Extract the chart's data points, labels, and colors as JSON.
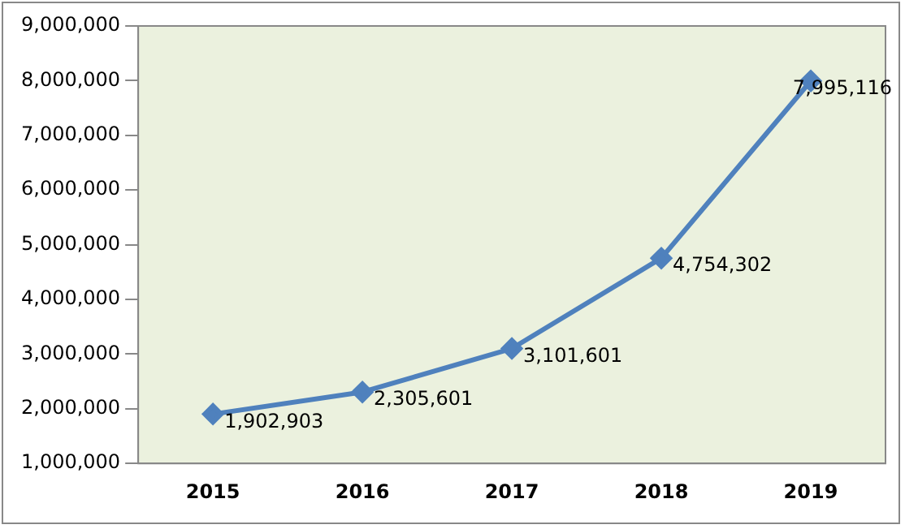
{
  "chart_data": {
    "type": "line",
    "categories": [
      "2015",
      "2016",
      "2017",
      "2018",
      "2019"
    ],
    "values": [
      1902903,
      2305601,
      3101601,
      4754302,
      7995116
    ],
    "value_labels": [
      "1,902,903",
      "2,305,601",
      "3,101,601",
      "4,754,302",
      "7,995,116"
    ],
    "color": "#4f81bd",
    "marker": "diamond",
    "grid": false,
    "legend": false,
    "ylim": [
      1000000,
      9000000
    ],
    "yticks": [
      {
        "value": 1000000,
        "label": "1,000,000"
      },
      {
        "value": 2000000,
        "label": "2,000,000"
      },
      {
        "value": 3000000,
        "label": "3,000,000"
      },
      {
        "value": 4000000,
        "label": "4,000,000"
      },
      {
        "value": 5000000,
        "label": "5,000,000"
      },
      {
        "value": 6000000,
        "label": "6,000,000"
      },
      {
        "value": 7000000,
        "label": "7,000,000"
      },
      {
        "value": 8000000,
        "label": "8,000,000"
      },
      {
        "value": 9000000,
        "label": "9,000,000"
      }
    ]
  }
}
